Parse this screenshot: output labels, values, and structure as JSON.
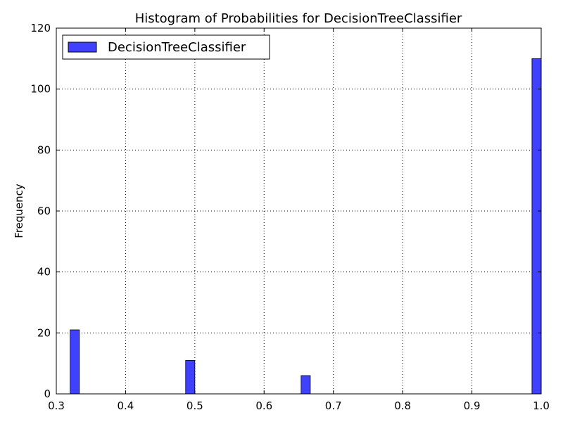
{
  "chart_data": {
    "type": "bar",
    "title": "Histogram of Probabilities for DecisionTreeClassifier",
    "xlabel": "",
    "ylabel": "Frequency",
    "xlim": [
      0.3,
      1.0
    ],
    "ylim": [
      0,
      120
    ],
    "xticks": [
      0.3,
      0.4,
      0.5,
      0.6,
      0.7,
      0.8,
      0.9,
      1.0
    ],
    "xtick_labels": [
      "0.3",
      "0.4",
      "0.5",
      "0.6",
      "0.7",
      "0.8",
      "0.9",
      "1.0"
    ],
    "yticks": [
      0,
      20,
      40,
      60,
      80,
      100,
      120
    ],
    "ytick_labels": [
      "0",
      "20",
      "40",
      "60",
      "80",
      "100",
      "120"
    ],
    "grid": true,
    "legend": {
      "position": "top-left",
      "entries": [
        "DecisionTreeClassifier"
      ]
    },
    "bar_width": 0.0133,
    "bar_color": "#4040ff",
    "series": [
      {
        "name": "DecisionTreeClassifier",
        "bins": [
          {
            "x": 0.3333,
            "value": 21
          },
          {
            "x": 0.5,
            "value": 11
          },
          {
            "x": 0.6667,
            "value": 6
          },
          {
            "x": 1.0,
            "value": 110
          }
        ]
      }
    ]
  }
}
